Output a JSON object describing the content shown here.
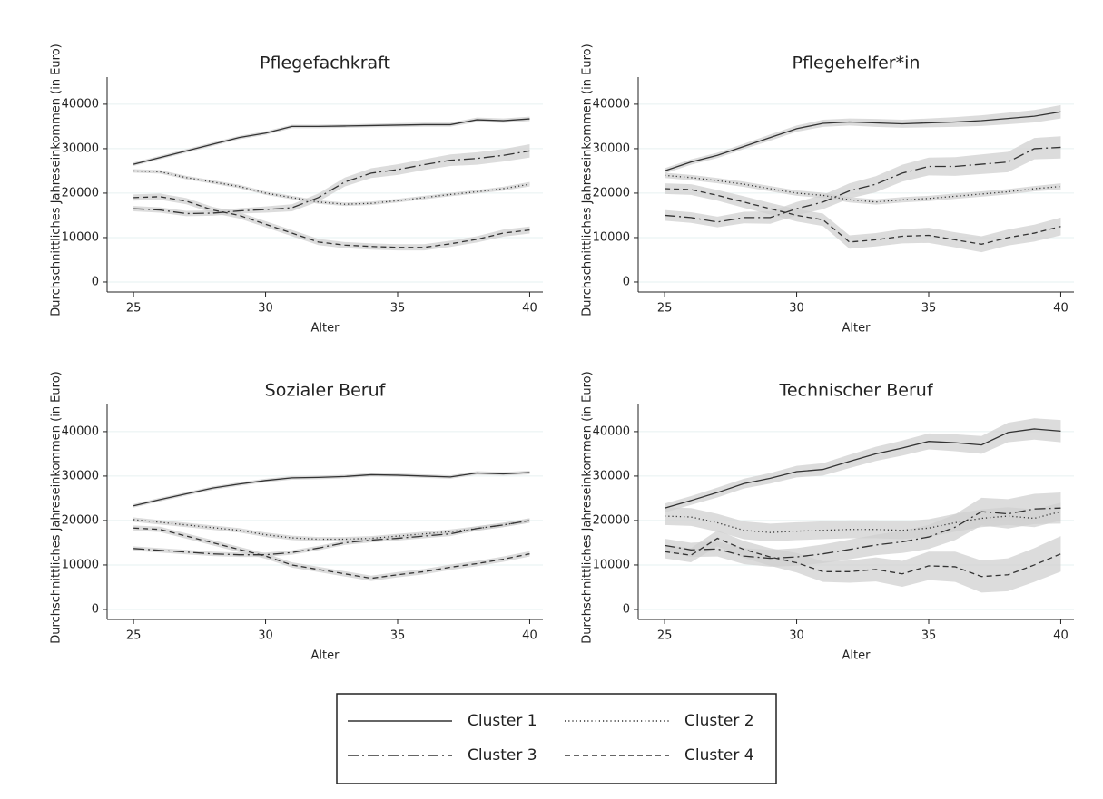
{
  "legend": [
    {
      "name": "Cluster 1",
      "dash": "solid",
      "color": "#333333"
    },
    {
      "name": "Cluster 2",
      "dash": "dotted",
      "color": "#333333"
    },
    {
      "name": "Cluster 3",
      "dash": "dashdot",
      "color": "#333333"
    },
    {
      "name": "Cluster 4",
      "dash": "dashed",
      "color": "#333333"
    }
  ],
  "chart_data": [
    {
      "type": "line",
      "title": "Pflegefachkraft",
      "xlabel": "Alter",
      "ylabel": "Durchschnittliches Jahreseinkommen (in Euro)",
      "x": [
        25,
        26,
        27,
        28,
        29,
        30,
        31,
        32,
        33,
        34,
        35,
        36,
        37,
        38,
        39,
        40
      ],
      "xlim": [
        24,
        40.5
      ],
      "xticks": [
        25,
        30,
        35,
        40
      ],
      "ylim": [
        -2250,
        46100
      ],
      "yticks": [
        0,
        10000,
        20000,
        30000,
        40000
      ],
      "grid": true,
      "band_color": "#d0d0d0",
      "series": [
        {
          "values": [
            26500,
            28000,
            29500,
            31000,
            32500,
            33500,
            35000,
            35000,
            35100,
            35200,
            35300,
            35400,
            35400,
            36500,
            36300,
            36700
          ],
          "ci": [
            400,
            400,
            400,
            400,
            400,
            400,
            400,
            400,
            400,
            400,
            450,
            450,
            450,
            500,
            500,
            500
          ]
        },
        {
          "values": [
            25000,
            24800,
            23500,
            22500,
            21500,
            20000,
            19000,
            18000,
            17500,
            17700,
            18300,
            19000,
            19700,
            20300,
            21000,
            22000
          ],
          "ci": [
            400,
            400,
            400,
            400,
            400,
            400,
            400,
            400,
            400,
            400,
            400,
            400,
            400,
            400,
            450,
            500
          ]
        },
        {
          "values": [
            16500,
            16200,
            15400,
            15500,
            16000,
            16300,
            16700,
            19000,
            22500,
            24500,
            25300,
            26400,
            27400,
            27800,
            28500,
            29500
          ],
          "ci": [
            600,
            600,
            600,
            600,
            600,
            700,
            800,
            900,
            1000,
            1100,
            1200,
            1200,
            1300,
            1400,
            1400,
            1500
          ]
        },
        {
          "values": [
            19000,
            19200,
            18200,
            16200,
            15000,
            13000,
            11000,
            9000,
            8300,
            8000,
            7800,
            7800,
            8600,
            9600,
            11000,
            11700
          ],
          "ci": [
            700,
            700,
            700,
            700,
            700,
            700,
            700,
            700,
            700,
            700,
            700,
            700,
            700,
            700,
            800,
            800
          ]
        }
      ]
    },
    {
      "type": "line",
      "title": "Pflegehelfer*in",
      "xlabel": "Alter",
      "ylabel": "Durchschnittliches Jahreseinkommen (in Euro)",
      "x": [
        25,
        26,
        27,
        28,
        29,
        30,
        31,
        32,
        33,
        34,
        35,
        36,
        37,
        38,
        39,
        40
      ],
      "xlim": [
        24,
        40.5
      ],
      "xticks": [
        25,
        30,
        35,
        40
      ],
      "ylim": [
        -2250,
        46100
      ],
      "yticks": [
        0,
        10000,
        20000,
        30000,
        40000
      ],
      "grid": true,
      "band_color": "#d0d0d0",
      "series": [
        {
          "values": [
            25000,
            27000,
            28500,
            30500,
            32500,
            34500,
            35700,
            36000,
            35800,
            35600,
            35800,
            36000,
            36300,
            36800,
            37300,
            38300
          ],
          "ci": [
            600,
            600,
            600,
            600,
            700,
            700,
            800,
            800,
            900,
            900,
            1000,
            1100,
            1200,
            1300,
            1400,
            1500
          ]
        },
        {
          "values": [
            24000,
            23500,
            22800,
            22000,
            21000,
            20000,
            19500,
            18500,
            18000,
            18500,
            18800,
            19300,
            19800,
            20300,
            21000,
            21500
          ],
          "ci": [
            600,
            600,
            600,
            600,
            600,
            600,
            600,
            600,
            600,
            600,
            600,
            600,
            600,
            600,
            600,
            700
          ]
        },
        {
          "values": [
            15000,
            14500,
            13500,
            14500,
            14500,
            16500,
            18000,
            20500,
            22000,
            24500,
            26000,
            26000,
            26500,
            27000,
            30000,
            30300
          ],
          "ci": [
            1200,
            1200,
            1200,
            1300,
            1400,
            1500,
            1600,
            1700,
            1800,
            1900,
            2000,
            2100,
            2200,
            2300,
            2400,
            2500
          ]
        },
        {
          "values": [
            21000,
            20800,
            19500,
            18000,
            16500,
            15000,
            14000,
            9000,
            9500,
            10300,
            10500,
            9500,
            8500,
            10000,
            11000,
            12500
          ],
          "ci": [
            1200,
            1200,
            1200,
            1300,
            1300,
            1400,
            1400,
            1500,
            1500,
            1600,
            1700,
            1700,
            1800,
            1800,
            1900,
            2000
          ]
        }
      ]
    },
    {
      "type": "line",
      "title": "Sozialer Beruf",
      "xlabel": "Alter",
      "ylabel": "Durchschnittliches Jahreseinkommen (in Euro)",
      "x": [
        25,
        26,
        27,
        28,
        29,
        30,
        31,
        32,
        33,
        34,
        35,
        36,
        37,
        38,
        39,
        40
      ],
      "xlim": [
        24,
        40.5
      ],
      "xticks": [
        25,
        30,
        35,
        40
      ],
      "ylim": [
        -2250,
        46100
      ],
      "yticks": [
        0,
        10000,
        20000,
        30000,
        40000
      ],
      "grid": true,
      "band_color": "#d0d0d0",
      "series": [
        {
          "values": [
            23300,
            24700,
            26000,
            27300,
            28200,
            29000,
            29600,
            29700,
            29900,
            30300,
            30200,
            30000,
            29800,
            30700,
            30500,
            30800
          ],
          "ci": [
            400,
            400,
            400,
            400,
            400,
            400,
            400,
            400,
            400,
            400,
            400,
            400,
            400,
            400,
            400,
            400
          ]
        },
        {
          "values": [
            20200,
            19600,
            19000,
            18400,
            17800,
            16800,
            16100,
            15800,
            15800,
            16000,
            16500,
            17000,
            17500,
            18200,
            19000,
            20000
          ],
          "ci": [
            500,
            500,
            500,
            500,
            500,
            500,
            500,
            500,
            500,
            500,
            500,
            500,
            500,
            500,
            500,
            500
          ]
        },
        {
          "values": [
            13700,
            13300,
            12900,
            12500,
            12300,
            12300,
            12800,
            13800,
            15000,
            15600,
            16000,
            16500,
            17000,
            18200,
            19000,
            20000
          ],
          "ci": [
            500,
            500,
            500,
            500,
            500,
            500,
            500,
            500,
            500,
            500,
            500,
            500,
            500,
            500,
            500,
            500
          ]
        },
        {
          "values": [
            18300,
            18000,
            16500,
            15000,
            13500,
            12000,
            10000,
            9000,
            8000,
            7000,
            7800,
            8500,
            9500,
            10300,
            11300,
            12500
          ],
          "ci": [
            600,
            600,
            600,
            600,
            600,
            600,
            600,
            600,
            600,
            600,
            600,
            600,
            600,
            600,
            600,
            600
          ]
        }
      ]
    },
    {
      "type": "line",
      "title": "Technischer Beruf",
      "xlabel": "Alter",
      "ylabel": "Durchschnittliches Jahreseinkommen (in Euro)",
      "x": [
        25,
        26,
        27,
        28,
        29,
        30,
        31,
        32,
        33,
        34,
        35,
        36,
        37,
        38,
        39,
        40
      ],
      "xlim": [
        24,
        40.5
      ],
      "xticks": [
        25,
        30,
        35,
        40
      ],
      "ylim": [
        -2250,
        46100
      ],
      "yticks": [
        0,
        10000,
        20000,
        30000,
        40000
      ],
      "grid": true,
      "band_color": "#d0d0d0",
      "series": [
        {
          "values": [
            22800,
            24500,
            26300,
            28300,
            29500,
            31000,
            31500,
            33300,
            35000,
            36300,
            37800,
            37500,
            37000,
            39800,
            40600,
            40100
          ],
          "ci": [
            1000,
            1000,
            1100,
            1100,
            1200,
            1300,
            1400,
            1500,
            1600,
            1700,
            1800,
            1900,
            2000,
            2200,
            2400,
            2500
          ]
        },
        {
          "values": [
            21000,
            20800,
            19500,
            17800,
            17300,
            17600,
            17800,
            18000,
            18000,
            17800,
            18300,
            19500,
            20500,
            21000,
            20500,
            22000
          ],
          "ci": [
            2000,
            2000,
            2000,
            2000,
            2000,
            2000,
            2000,
            2000,
            2000,
            2000,
            2000,
            2000,
            2000,
            2000,
            2000,
            2000
          ]
        },
        {
          "values": [
            14400,
            13400,
            13600,
            12000,
            11500,
            11800,
            12500,
            13500,
            14500,
            15200,
            16300,
            18500,
            22000,
            21500,
            22600,
            22800
          ],
          "ci": [
            1500,
            1600,
            1700,
            1800,
            1900,
            2000,
            2100,
            2200,
            2300,
            2500,
            2700,
            2900,
            3100,
            3300,
            3400,
            3500
          ]
        },
        {
          "values": [
            13000,
            12200,
            16000,
            13500,
            11800,
            10500,
            8500,
            8500,
            9000,
            8000,
            9800,
            9600,
            7400,
            7800,
            10000,
            12500
          ],
          "ci": [
            1500,
            1600,
            1800,
            1900,
            2000,
            2200,
            2300,
            2500,
            2700,
            2900,
            3200,
            3400,
            3600,
            3700,
            3800,
            4000
          ]
        }
      ]
    }
  ]
}
